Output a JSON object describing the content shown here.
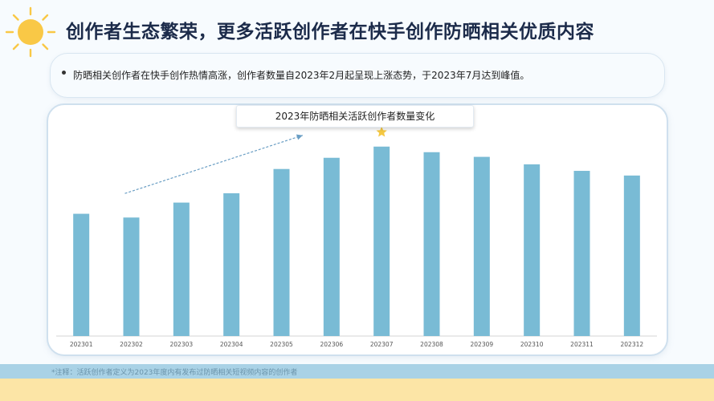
{
  "header": {
    "title": "创作者生态繁荣，更多活跃创作者在快手创作防晒相关优质内容"
  },
  "summary": {
    "bullet": "•",
    "text": "防晒相关创作者在快手创作热情高涨，创作者数量自2023年2月起呈现上涨态势，于2023年7月达到峰值。"
  },
  "chart_data": {
    "type": "bar",
    "title": "2023年防晒相关活跃创作者数量变化",
    "categories": [
      "202301",
      "202302",
      "202303",
      "202304",
      "202305",
      "202306",
      "202307",
      "202308",
      "202309",
      "202310",
      "202311",
      "202312"
    ],
    "values": [
      131,
      127,
      143,
      153,
      179,
      191,
      203,
      197,
      192,
      184,
      177,
      172
    ],
    "ylim": [
      0,
      220
    ],
    "bar_color": "#79bbd5",
    "peak_marker": {
      "category": "202307",
      "icon": "star-icon",
      "color": "#f5c842"
    },
    "trend_arrow": {
      "from_category": "202302",
      "to_category": "202306",
      "color": "#6a9ec4"
    },
    "grid": false,
    "legend": "none"
  },
  "footer": {
    "note": "*注释：活跃创作者定义为2023年度内有发布过防晒相关短视频内容的创作者"
  },
  "colors": {
    "title": "#1c2b4a",
    "sun": "#f9c846",
    "footer_band": "#a9d2e6",
    "footer_bottom": "#fce5a6"
  }
}
